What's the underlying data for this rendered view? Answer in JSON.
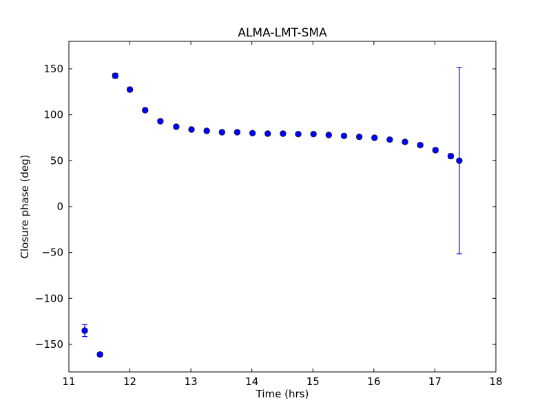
{
  "chart_data": {
    "type": "scatter",
    "title": "ALMA-LMT-SMA",
    "xlabel": "Time (hrs)",
    "ylabel": "Closure phase (deg)",
    "xlim": [
      11,
      18
    ],
    "ylim": [
      -180,
      180
    ],
    "xticks": [
      11,
      12,
      13,
      14,
      15,
      16,
      17,
      18
    ],
    "xtick_labels": [
      "11",
      "12",
      "13",
      "14",
      "15",
      "16",
      "17",
      "18"
    ],
    "yticks": [
      150,
      100,
      50,
      0,
      -50,
      -100,
      -150
    ],
    "ytick_labels": [
      "150",
      "100",
      "50",
      "0",
      "−50",
      "−100",
      "−150"
    ],
    "grid": false,
    "marker_color": "#0000ff",
    "series": [
      {
        "name": "ALMA-LMT-SMA",
        "x": [
          11.26,
          11.51,
          11.76,
          12.0,
          12.25,
          12.5,
          12.76,
          13.01,
          13.26,
          13.51,
          13.76,
          14.01,
          14.26,
          14.51,
          14.76,
          15.01,
          15.26,
          15.51,
          15.76,
          16.01,
          16.26,
          16.51,
          16.76,
          17.01,
          17.26,
          17.4
        ],
        "y": [
          -135,
          -161,
          142.5,
          127.5,
          105,
          93,
          87,
          84,
          82.5,
          81,
          81,
          80,
          79.5,
          79.5,
          79,
          79,
          78,
          77,
          76,
          75,
          73,
          70.5,
          67,
          61.5,
          55,
          50
        ],
        "yerr": [
          6.5,
          2,
          2.5,
          2,
          1.5,
          1.5,
          1.5,
          1.5,
          1.5,
          1.5,
          1.5,
          1.5,
          1.5,
          1.5,
          1.5,
          1.5,
          1.5,
          1.5,
          1.5,
          1.5,
          1.5,
          1.5,
          2,
          2,
          2.5,
          101.5
        ]
      }
    ]
  }
}
